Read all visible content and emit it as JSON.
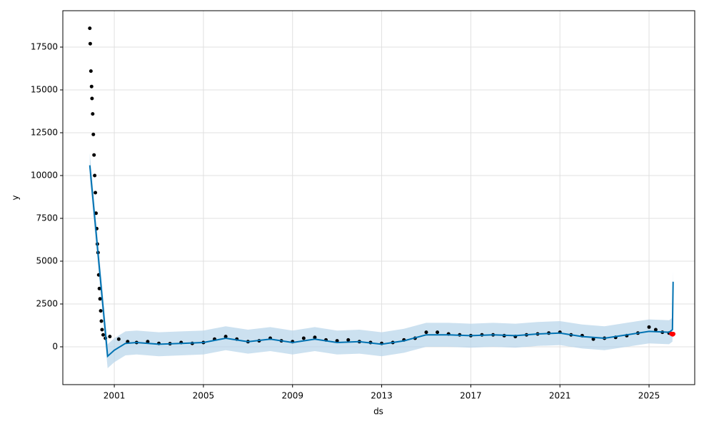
{
  "chart_data": {
    "type": "line",
    "xlabel": "ds",
    "ylabel": "y",
    "xlim": [
      1998.69,
      2027.05
    ],
    "ylim": [
      -2208,
      19625
    ],
    "xticks": [
      2001,
      2005,
      2009,
      2013,
      2017,
      2021,
      2025
    ],
    "yticks": [
      0,
      2500,
      5000,
      7500,
      10000,
      12500,
      15000,
      17500
    ],
    "grid": true,
    "points": {
      "color": "#000000",
      "x": [
        1999.9,
        1999.92,
        1999.95,
        1999.98,
        2000.0,
        2000.03,
        2000.06,
        2000.09,
        2000.12,
        2000.15,
        2000.18,
        2000.21,
        2000.24,
        2000.27,
        2000.3,
        2000.33,
        2000.36,
        2000.39,
        2000.42,
        2000.45,
        2000.5,
        2000.6,
        2000.8,
        2001.2,
        2001.6,
        2002,
        2002.5,
        2003,
        2003.5,
        2004,
        2004.5,
        2005,
        2005.5,
        2006,
        2006.5,
        2007,
        2007.5,
        2008,
        2008.5,
        2009,
        2009.5,
        2010,
        2010.5,
        2011,
        2011.5,
        2012,
        2012.5,
        2013,
        2013.5,
        2014,
        2014.5,
        2015,
        2015.5,
        2016,
        2016.5,
        2017,
        2017.5,
        2018,
        2018.5,
        2019,
        2019.5,
        2020,
        2020.5,
        2021,
        2021.5,
        2022,
        2022.5,
        2023,
        2023.5,
        2024,
        2024.5,
        2025,
        2025.3,
        2025.6,
        2025.9
      ],
      "y": [
        18600,
        17700,
        16100,
        15200,
        14500,
        13600,
        12400,
        11200,
        10000,
        9000,
        7800,
        6900,
        6000,
        5500,
        4200,
        3400,
        2800,
        2100,
        1500,
        1000,
        700,
        500,
        600,
        450,
        300,
        250,
        300,
        200,
        180,
        250,
        200,
        250,
        450,
        600,
        450,
        300,
        350,
        500,
        350,
        300,
        500,
        550,
        400,
        350,
        400,
        300,
        250,
        200,
        250,
        400,
        500,
        850,
        850,
        750,
        700,
        650,
        700,
        700,
        650,
        600,
        700,
        750,
        800,
        850,
        700,
        650,
        450,
        500,
        550,
        650,
        800,
        1150,
        1000,
        850,
        800
      ]
    },
    "forecast": {
      "color": "#0072b2",
      "band_color": "#b7d4ea",
      "x": [
        1999.9,
        2000.7,
        2001.0,
        2001.5,
        2002,
        2003,
        2004,
        2005,
        2006,
        2007,
        2008,
        2009,
        2010,
        2011,
        2012,
        2013,
        2014,
        2015,
        2016,
        2017,
        2018,
        2019,
        2020,
        2021,
        2022,
        2023,
        2024,
        2025,
        2025.9,
        2026.05,
        2026.08
      ],
      "values": [
        10600,
        -550,
        -200,
        200,
        250,
        150,
        200,
        250,
        500,
        300,
        450,
        250,
        450,
        250,
        300,
        150,
        350,
        700,
        700,
        650,
        700,
        650,
        750,
        800,
        600,
        500,
        700,
        900,
        850,
        1000,
        3800
      ],
      "lower": [
        9900,
        -1250,
        -900,
        -500,
        -450,
        -550,
        -500,
        -450,
        -200,
        -400,
        -250,
        -450,
        -250,
        -450,
        -400,
        -550,
        -350,
        0,
        0,
        -50,
        0,
        -50,
        50,
        100,
        -100,
        -200,
        0,
        200,
        150,
        300,
        3100
      ],
      "upper": [
        11300,
        150,
        500,
        900,
        950,
        850,
        900,
        950,
        1200,
        1000,
        1150,
        950,
        1150,
        950,
        1000,
        850,
        1050,
        1400,
        1400,
        1350,
        1400,
        1350,
        1450,
        1500,
        1300,
        1200,
        1400,
        1600,
        1550,
        1700,
        4500
      ]
    },
    "recent": {
      "color": "#ff0000",
      "x": [
        2026.0,
        2026.03,
        2026.06,
        2026.09
      ],
      "y": [
        760,
        740,
        720,
        750
      ]
    }
  }
}
